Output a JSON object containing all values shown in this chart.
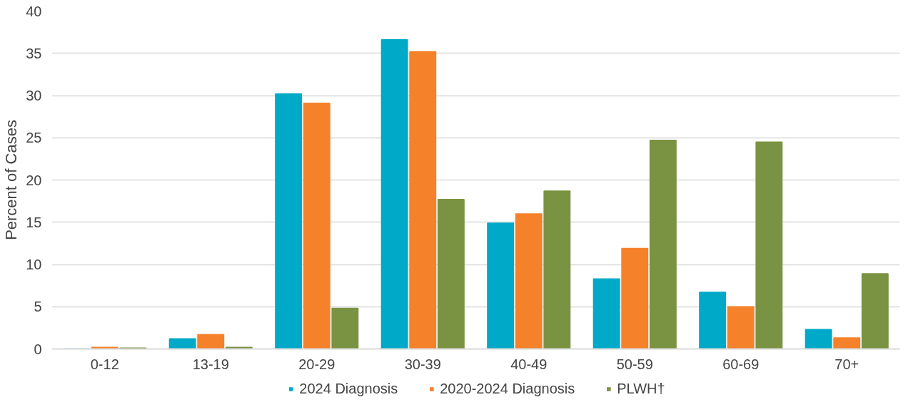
{
  "chart_data": {
    "type": "bar",
    "ylabel": "Percent of Cases",
    "categories": [
      "0-12",
      "13-19",
      "20-29",
      "30-39",
      "40-49",
      "50-59",
      "60-69",
      "70+"
    ],
    "series": [
      {
        "name": "2024 Diagnosis",
        "color": "#00a9c7",
        "values": [
          0,
          1.2,
          30.2,
          36.6,
          14.9,
          8.3,
          6.7,
          2.3
        ]
      },
      {
        "name": "2020-2024 Diagnosis",
        "color": "#f5812a",
        "values": [
          0.2,
          1.7,
          29.1,
          35.2,
          16.0,
          11.9,
          5.0,
          1.3
        ]
      },
      {
        "name": "PLWH†",
        "color": "#7a9342",
        "values": [
          0.1,
          0.2,
          4.8,
          17.7,
          18.7,
          24.7,
          24.5,
          8.9
        ]
      }
    ],
    "ylim": [
      0,
      40
    ],
    "yticks": [
      0,
      5,
      10,
      15,
      20,
      25,
      30,
      35,
      40
    ],
    "grid": "y",
    "legend": "bottom"
  }
}
